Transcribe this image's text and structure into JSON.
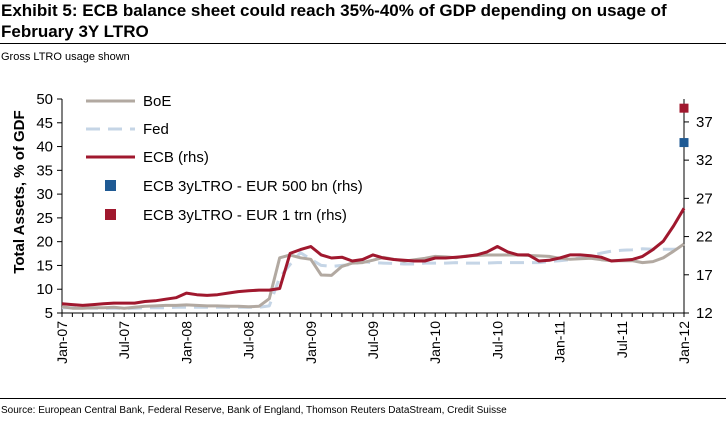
{
  "header": {
    "title": "Exhibit 5: ECB balance sheet could reach 35%-40% of GDP depending on usage of February 3Y LTRO",
    "subtitle": "Gross LTRO usage shown"
  },
  "footer": {
    "source": "Source: European Central Bank, Federal Reserve, Bank of England, Thomson Reuters DataStream, Credit Suisse"
  },
  "colors": {
    "boe": "#b2a9a1",
    "fed": "#c5d5e6",
    "ecb": "#a0182e",
    "ltro500": "#1f5a94",
    "ltro1trn": "#a0182e"
  },
  "chart_data": {
    "type": "line",
    "x": [
      "2007-01",
      "2007-02",
      "2007-03",
      "2007-04",
      "2007-05",
      "2007-06",
      "2007-07",
      "2007-08",
      "2007-09",
      "2007-10",
      "2007-11",
      "2007-12",
      "2008-01",
      "2008-02",
      "2008-03",
      "2008-04",
      "2008-05",
      "2008-06",
      "2008-07",
      "2008-08",
      "2008-09",
      "2008-10",
      "2008-11",
      "2008-12",
      "2009-01",
      "2009-02",
      "2009-03",
      "2009-04",
      "2009-05",
      "2009-06",
      "2009-07",
      "2009-08",
      "2009-09",
      "2009-10",
      "2009-11",
      "2009-12",
      "2010-01",
      "2010-02",
      "2010-03",
      "2010-04",
      "2010-05",
      "2010-06",
      "2010-07",
      "2010-08",
      "2010-09",
      "2010-10",
      "2010-11",
      "2010-12",
      "2011-01",
      "2011-02",
      "2011-03",
      "2011-04",
      "2011-05",
      "2011-06",
      "2011-07",
      "2011-08",
      "2011-09",
      "2011-10",
      "2011-11",
      "2011-12",
      "2012-01"
    ],
    "x_tick_labels": [
      "Jan-07",
      "Jul-07",
      "Jan-08",
      "Jul-08",
      "Jan-09",
      "Jul-09",
      "Jan-10",
      "Jul-10",
      "Jan-11",
      "Jul-11",
      "Jan-12"
    ],
    "ylabel": "Total Assets, % of GDF",
    "ylim": [
      5,
      50
    ],
    "y_ticks": [
      5,
      10,
      15,
      20,
      25,
      30,
      35,
      40,
      45,
      50
    ],
    "y2lim": [
      12,
      40
    ],
    "y2_ticks": [
      12,
      17,
      22,
      27,
      32,
      37
    ],
    "legend_position": "top-left",
    "series": [
      {
        "name": "BoE",
        "axis": "left",
        "style": "line",
        "values": [
          6.3,
          6.0,
          6.0,
          6.1,
          6.1,
          6.2,
          6.0,
          6.2,
          6.4,
          6.5,
          6.6,
          6.6,
          6.7,
          6.6,
          6.5,
          6.5,
          6.4,
          6.4,
          6.3,
          6.4,
          8.0,
          16.6,
          17.2,
          16.6,
          16.3,
          13.0,
          12.9,
          14.8,
          15.5,
          15.6,
          16.1,
          16.7,
          16.3,
          15.9,
          16.2,
          16.5,
          16.9,
          16.8,
          16.6,
          17.0,
          17.1,
          17.2,
          17.2,
          17.2,
          17.2,
          17.1,
          17.0,
          16.9,
          16.5,
          16.3,
          16.4,
          16.5,
          16.2,
          16.0,
          16.0,
          16.0,
          15.6,
          15.8,
          16.6,
          18.0,
          19.5
        ]
      },
      {
        "name": "Fed",
        "axis": "left",
        "style": "dashed",
        "values": [
          6.1,
          6.1,
          6.1,
          6.0,
          6.0,
          6.0,
          6.0,
          6.0,
          6.1,
          6.1,
          6.1,
          6.2,
          6.2,
          6.2,
          6.2,
          6.2,
          6.2,
          6.2,
          6.2,
          6.2,
          6.5,
          12.5,
          15.2,
          17.7,
          16.3,
          15.0,
          14.8,
          15.0,
          15.2,
          15.8,
          15.6,
          15.5,
          15.4,
          15.3,
          15.3,
          15.5,
          15.5,
          15.5,
          15.6,
          15.5,
          15.5,
          15.5,
          15.6,
          15.6,
          15.6,
          15.6,
          15.6,
          15.8,
          16.0,
          16.2,
          16.6,
          17.0,
          17.6,
          18.0,
          18.2,
          18.3,
          18.5,
          18.4,
          18.4,
          18.4,
          18.5
        ]
      },
      {
        "name": "ECB (rhs)",
        "axis": "right",
        "style": "line",
        "values": [
          13.2,
          13.1,
          13.0,
          13.1,
          13.2,
          13.3,
          13.3,
          13.3,
          13.5,
          13.6,
          13.8,
          14.0,
          14.6,
          14.4,
          14.3,
          14.4,
          14.6,
          14.8,
          14.9,
          15.0,
          15.0,
          15.2,
          19.8,
          20.3,
          20.7,
          19.6,
          19.2,
          19.3,
          18.8,
          19.0,
          19.6,
          19.2,
          19.0,
          18.9,
          18.8,
          18.8,
          19.2,
          19.2,
          19.3,
          19.4,
          19.6,
          20.0,
          20.7,
          20.0,
          19.6,
          19.6,
          18.8,
          18.9,
          19.2,
          19.6,
          19.6,
          19.5,
          19.3,
          18.8,
          18.9,
          19.0,
          19.4,
          20.3,
          21.4,
          23.4,
          25.7
        ]
      },
      {
        "name": "ECB 3yLTRO - EUR 500 bn (rhs)",
        "axis": "right",
        "style": "square",
        "x": [
          "2012-01"
        ],
        "values": [
          34.3
        ]
      },
      {
        "name": "ECB 3yLTRO - EUR 1 trn (rhs)",
        "axis": "right",
        "style": "square",
        "x": [
          "2012-01"
        ],
        "values": [
          38.8
        ]
      }
    ]
  }
}
